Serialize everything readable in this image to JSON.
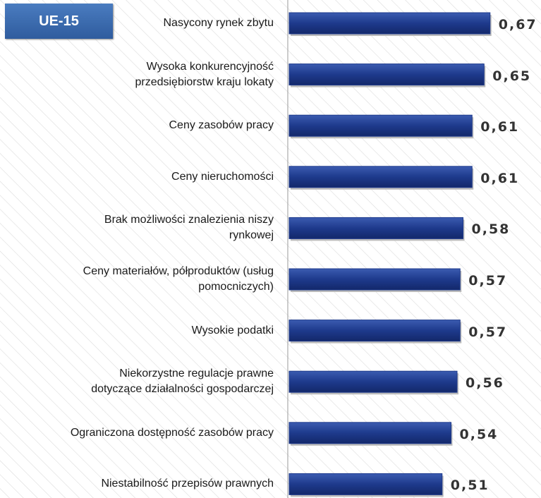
{
  "chart_data": {
    "type": "bar",
    "orientation": "horizontal",
    "annotation": "UE-15",
    "categories": [
      "Nasycony rynek  zbytu",
      "Wysoka konkurencyjność\nprzedsiębiorstw kraju lokaty",
      "Ceny zasobów pracy",
      "Ceny nieruchomości",
      "Brak możliwości znalezienia niszy\nrynkowej",
      "Ceny materiałów, półproduktów  (usług\npomocniczych)",
      "Wysokie podatki",
      "Niekorzystne regulacje prawne\ndotyczące działalności gospodarczej",
      "Ograniczona dostępność zasobów pracy",
      "Niestabilność przepisów prawnych"
    ],
    "values": [
      0.67,
      0.65,
      0.61,
      0.61,
      0.58,
      0.57,
      0.57,
      0.56,
      0.54,
      0.51
    ],
    "value_labels": [
      "0,67",
      "0,65",
      "0,61",
      "0,61",
      "0,58",
      "0,57",
      "0,57",
      "0,56",
      "0,54",
      "0,51"
    ],
    "color": "#1e3a8c",
    "xlim": [
      0,
      0.84
    ]
  }
}
